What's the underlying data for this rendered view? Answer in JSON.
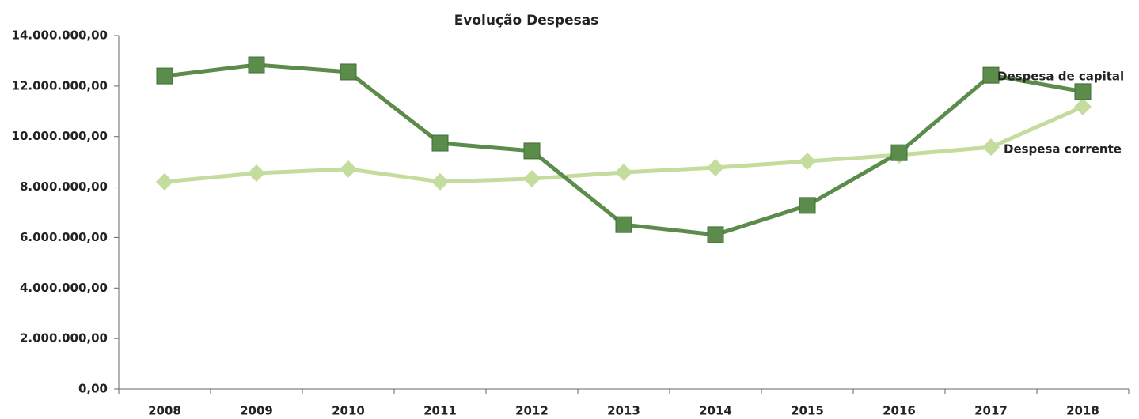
{
  "chart_data": {
    "type": "line",
    "title": "Evolução Despesas",
    "categories": [
      "2008",
      "2009",
      "2010",
      "2011",
      "2012",
      "2013",
      "2014",
      "2015",
      "2016",
      "2017",
      "2018"
    ],
    "series": [
      {
        "name": "Despesa de capital",
        "color": "#5b8c4b",
        "marker": "square",
        "values": [
          12400000,
          12840000,
          12560000,
          9740000,
          9430000,
          6510000,
          6110000,
          7270000,
          9360000,
          12430000,
          11780000
        ]
      },
      {
        "name": "Despesa corrente",
        "color": "#c5dc9f",
        "marker": "diamond",
        "values": [
          8210000,
          8550000,
          8710000,
          8210000,
          8330000,
          8580000,
          8770000,
          9020000,
          9270000,
          9580000,
          11180000
        ]
      }
    ],
    "ylim": [
      0,
      14000000
    ],
    "yticks": [
      {
        "value": 0,
        "label": "0,00"
      },
      {
        "value": 2000000,
        "label": "2.000.000,00"
      },
      {
        "value": 4000000,
        "label": "4.000.000,00"
      },
      {
        "value": 6000000,
        "label": "6.000.000,00"
      },
      {
        "value": 8000000,
        "label": "8.000.000,00"
      },
      {
        "value": 10000000,
        "label": "10.000.000,00"
      },
      {
        "value": 12000000,
        "label": "12.000.000,00"
      },
      {
        "value": 14000000,
        "label": "14.000.000,00"
      }
    ],
    "grid": false
  }
}
